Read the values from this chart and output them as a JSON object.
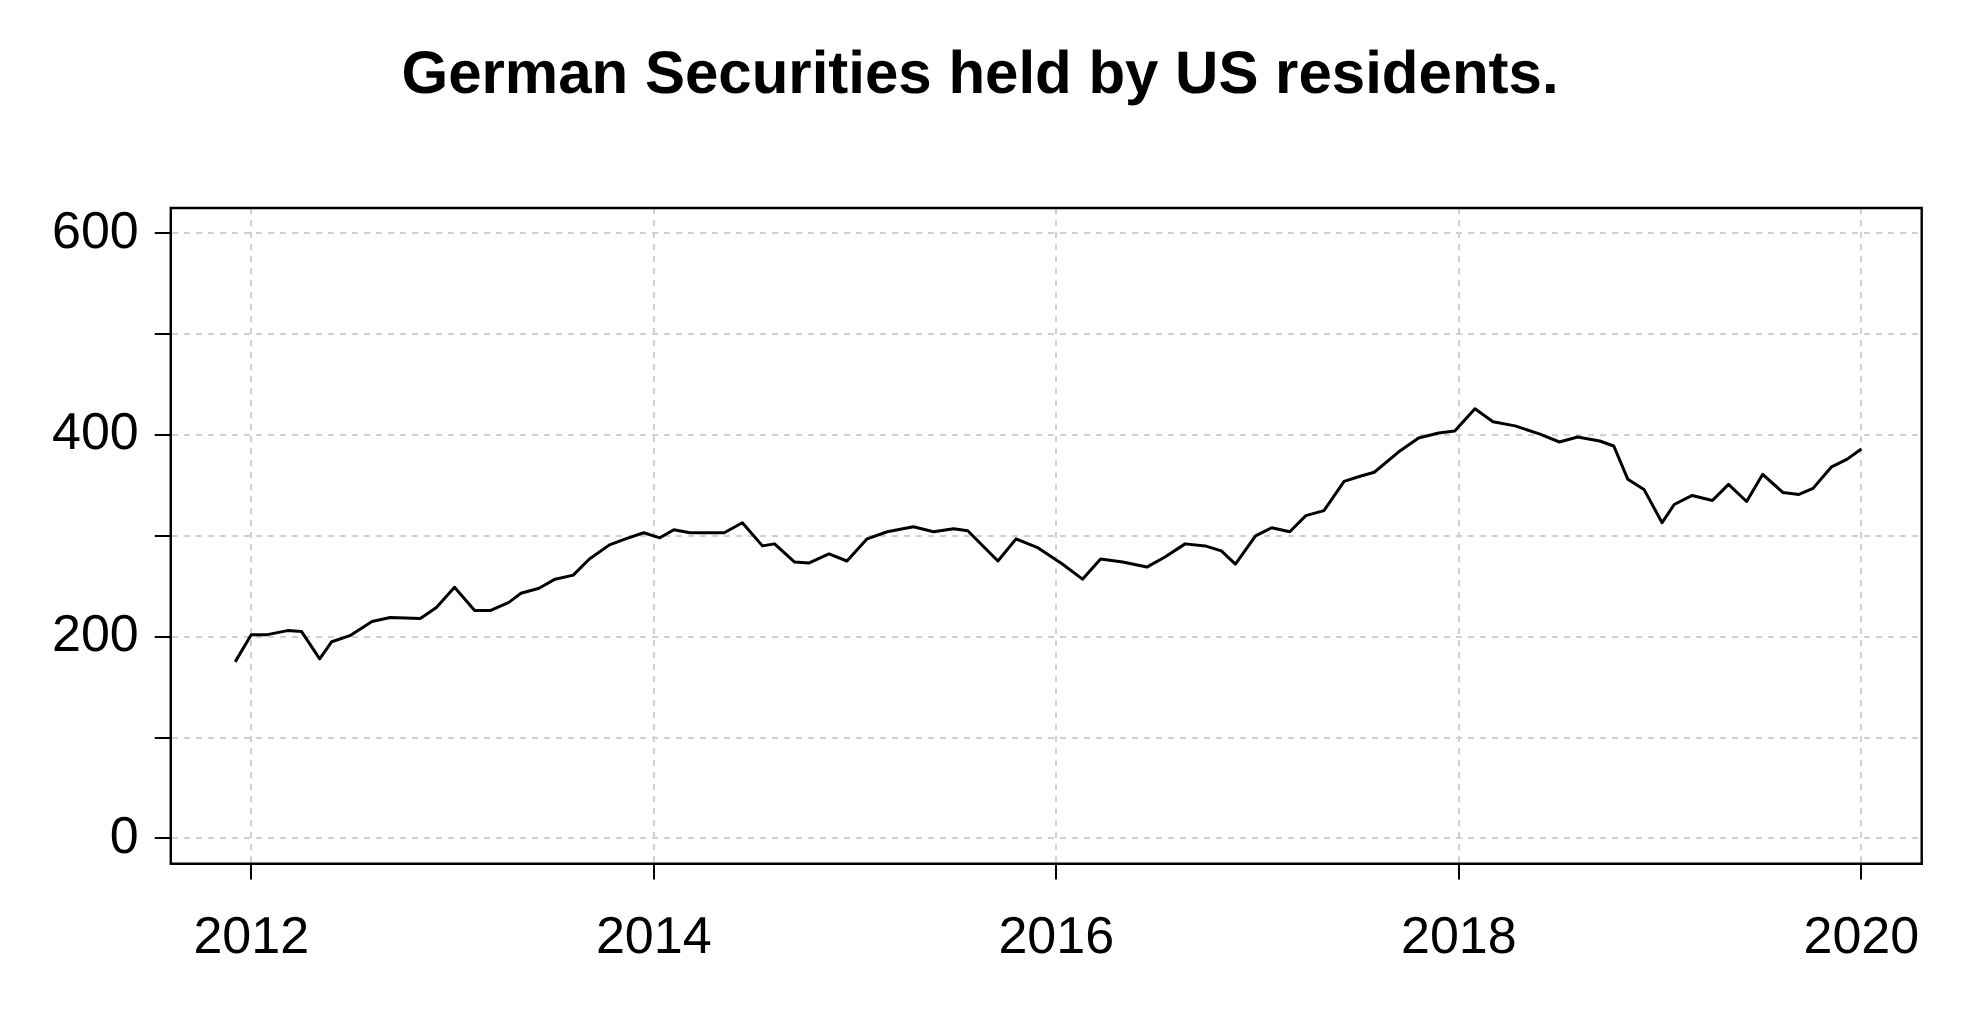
{
  "chart_data": {
    "type": "line",
    "title": "German Securities held by US residents.",
    "x": [
      2011.92,
      2012.0,
      2012.08,
      2012.18,
      2012.25,
      2012.34,
      2012.4,
      2012.49,
      2012.6,
      2012.69,
      2012.84,
      2012.92,
      2013.01,
      2013.11,
      2013.19,
      2013.28,
      2013.34,
      2013.43,
      2013.51,
      2013.6,
      2013.68,
      2013.78,
      2013.86,
      2013.95,
      2014.03,
      2014.1,
      2014.18,
      2014.27,
      2014.35,
      2014.44,
      2014.54,
      2014.6,
      2014.7,
      2014.77,
      2014.87,
      2014.96,
      2015.06,
      2015.16,
      2015.29,
      2015.39,
      2015.49,
      2015.56,
      2015.71,
      2015.8,
      2015.91,
      2016.03,
      2016.13,
      2016.22,
      2016.33,
      2016.45,
      2016.54,
      2016.64,
      2016.74,
      2016.82,
      2016.89,
      2016.99,
      2017.07,
      2017.16,
      2017.24,
      2017.33,
      2017.43,
      2017.51,
      2017.58,
      2017.7,
      2017.8,
      2017.9,
      2017.98,
      2018.08,
      2018.17,
      2018.28,
      2018.4,
      2018.5,
      2018.59,
      2018.7,
      2018.77,
      2018.84,
      2018.92,
      2019.01,
      2019.07,
      2019.16,
      2019.26,
      2019.34,
      2019.43,
      2019.51,
      2019.61,
      2019.69,
      2019.76,
      2019.85,
      2019.93,
      2020.0
    ],
    "series": [
      {
        "color": "#000000",
        "values": [
          175,
          202,
          202,
          206,
          205,
          178,
          195,
          201,
          215,
          219,
          218,
          229,
          249,
          226,
          226,
          234,
          243,
          248,
          257,
          261,
          277,
          291,
          297,
          303,
          298,
          306,
          303,
          303,
          303,
          313,
          290,
          292,
          274,
          273,
          282,
          275,
          297,
          304,
          309,
          304,
          307,
          305,
          275,
          297,
          288,
          272,
          257,
          277,
          274,
          269,
          279,
          292,
          290,
          285,
          272,
          300,
          308,
          304,
          320,
          325,
          354,
          359,
          363,
          383,
          397,
          402,
          404,
          426,
          413,
          409,
          401,
          393,
          398,
          394,
          389,
          356,
          346,
          313,
          331,
          340,
          335,
          351,
          334,
          361,
          343,
          341,
          347,
          368,
          376,
          386
        ]
      }
    ],
    "xlim": [
      2011.6,
      2020.3
    ],
    "xticks": [
      2012,
      2014,
      2016,
      2018,
      2020
    ],
    "ylim": [
      -25,
      625
    ],
    "yticks": [
      0,
      {
        "value": 100,
        "label": null
      },
      200,
      {
        "value": 300,
        "label": null
      },
      400,
      {
        "value": 500,
        "label": null
      },
      600
    ],
    "grid": true,
    "legend": false,
    "marker": "none",
    "line_style": "solid"
  }
}
